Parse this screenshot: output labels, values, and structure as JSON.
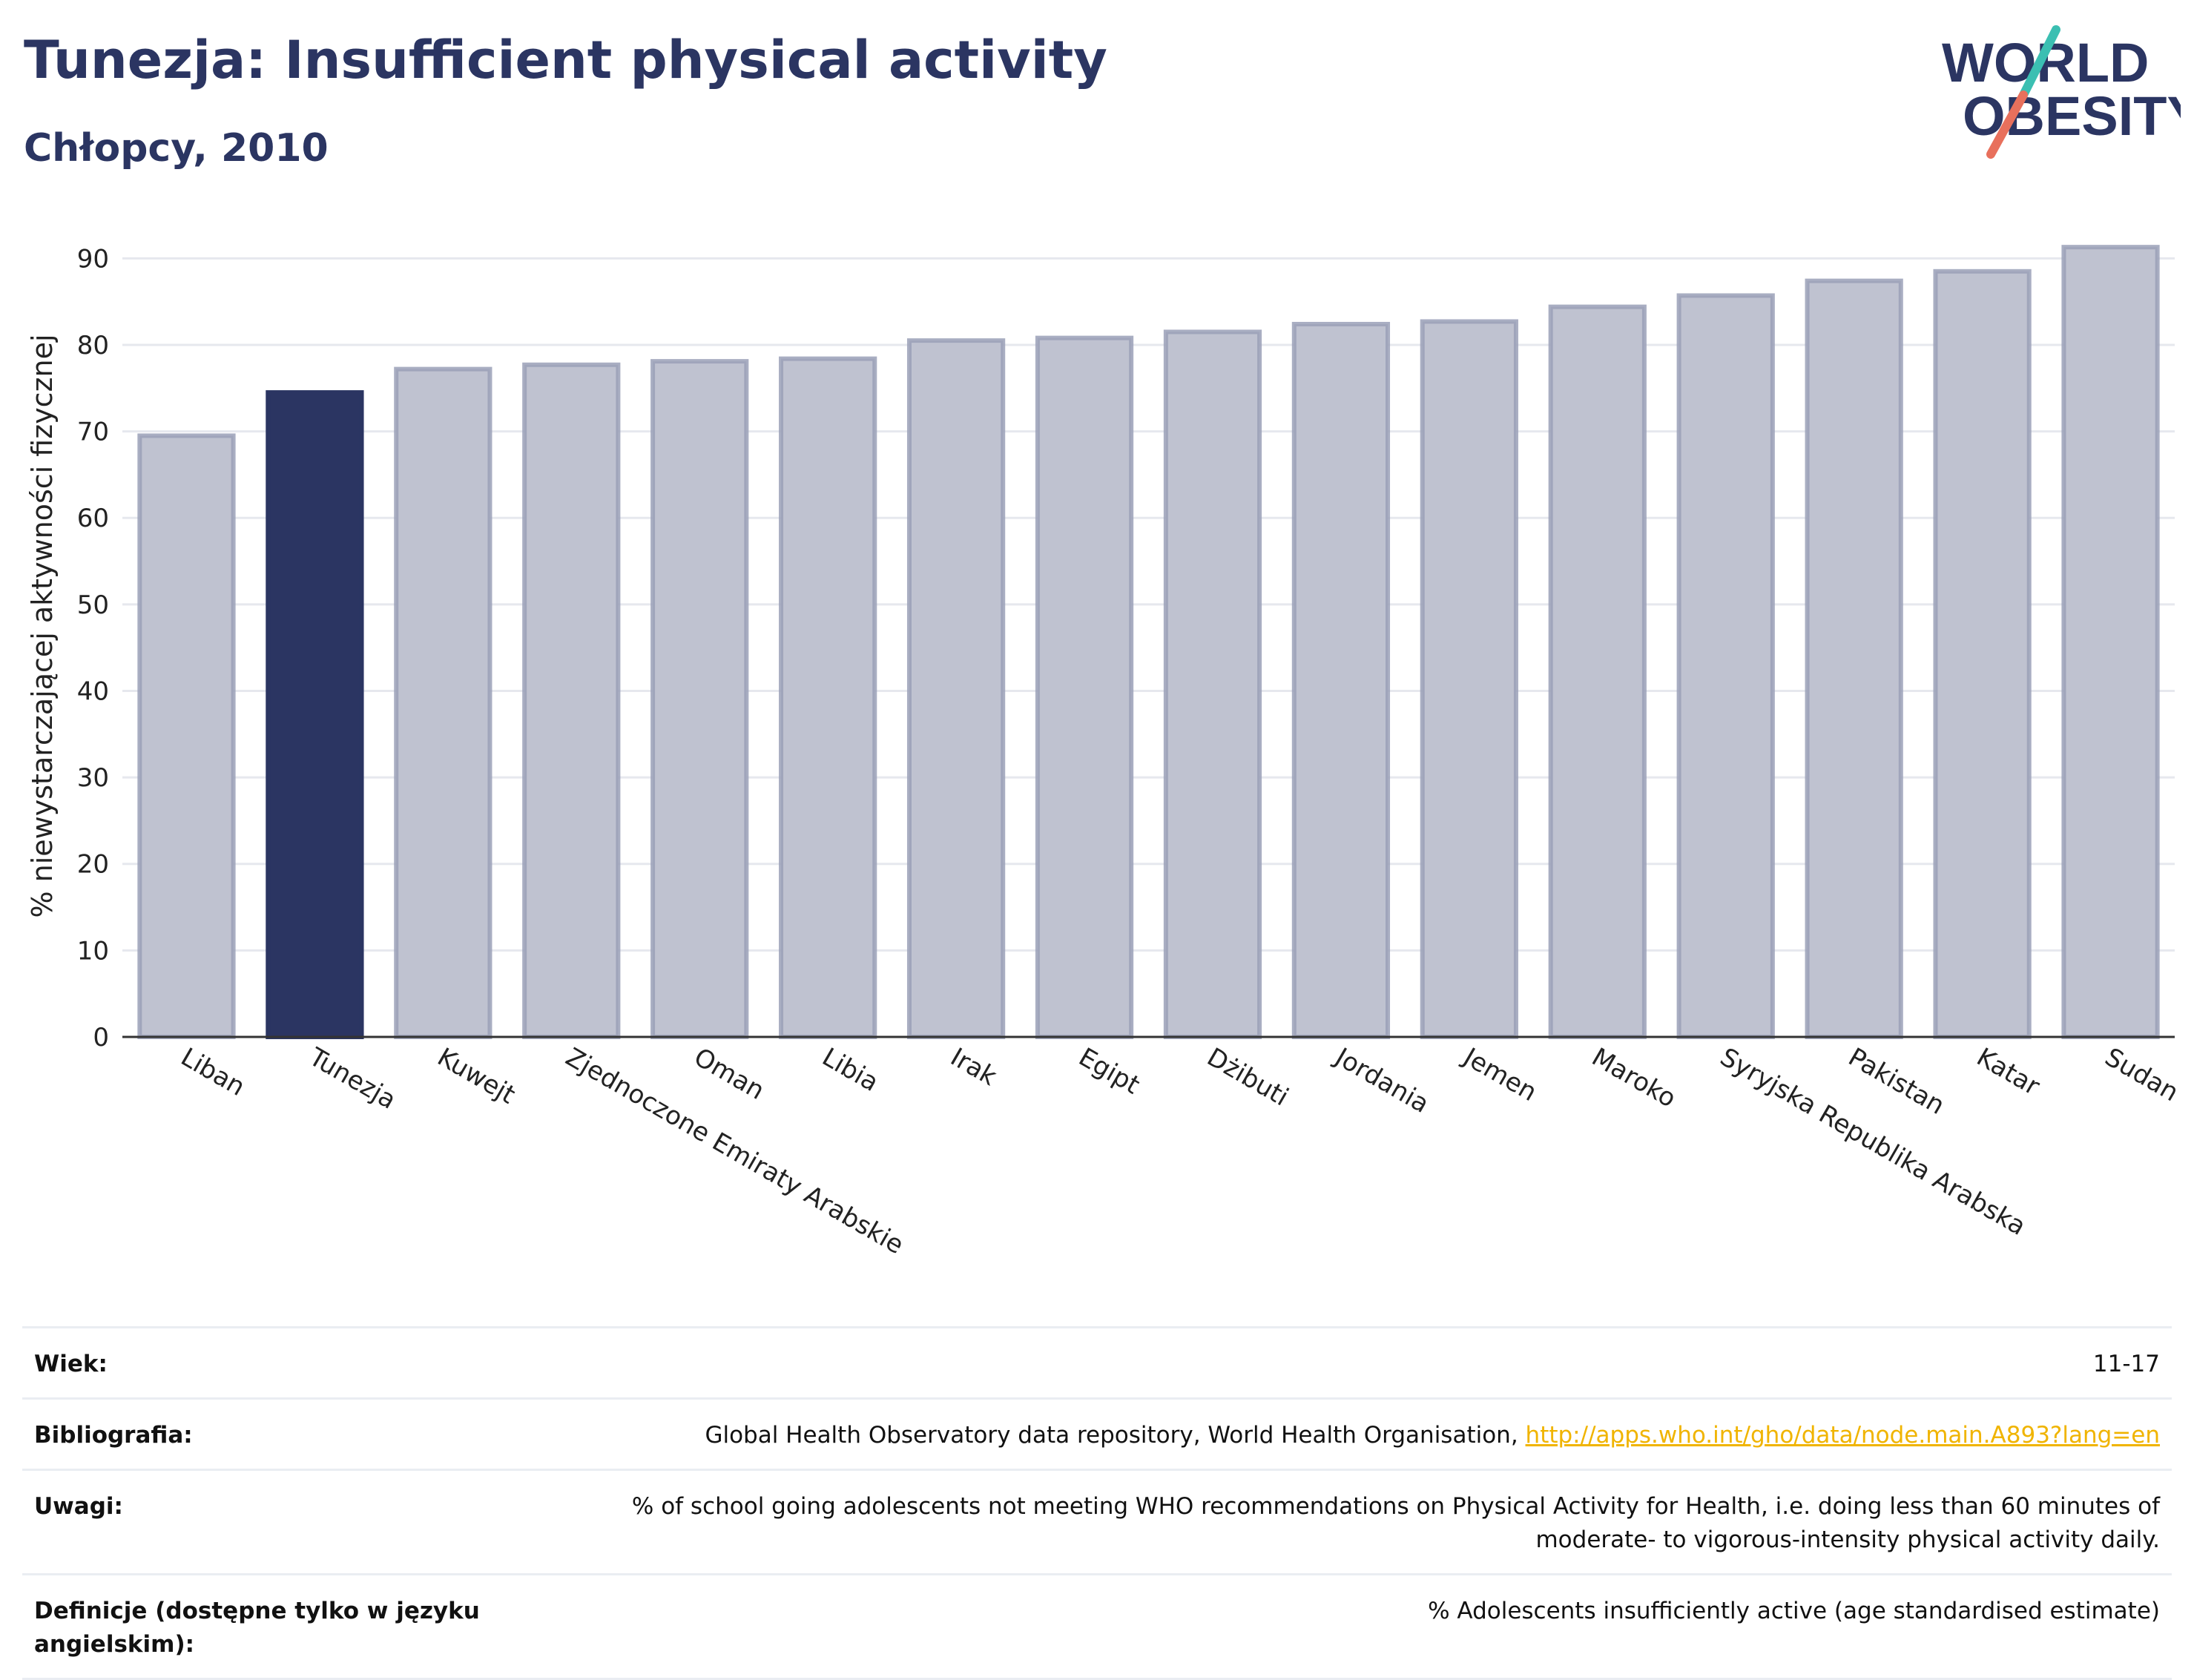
{
  "header": {
    "title": "Tunezja: Insufficient physical activity",
    "subtitle": "Chłopcy, 2010"
  },
  "logo": {
    "line1": "WORLD",
    "line2": "OBESITY",
    "accent_teal": "#3bbfb2",
    "accent_coral": "#e8705c",
    "text_color": "#2b3562"
  },
  "chart_data": {
    "type": "bar",
    "title": "",
    "xlabel": "",
    "ylabel": "% niewystarczającej aktywności fizycznej",
    "ylim": [
      0,
      95
    ],
    "yticks": [
      0,
      10,
      20,
      30,
      40,
      50,
      60,
      70,
      80,
      90
    ],
    "grid": true,
    "highlight": "Tunezja",
    "colors": {
      "bar": "#bfc2d0",
      "bar_edge": "#9aa0b7",
      "highlight": "#2b3562"
    },
    "categories": [
      "Liban",
      "Tunezja",
      "Kuwejt",
      "Zjednoczone Emiraty Arabskie",
      "Oman",
      "Libia",
      "Irak",
      "Egipt",
      "Dżibuti",
      "Jordania",
      "Jemen",
      "Maroko",
      "Syryjska Republika Arabska",
      "Pakistan",
      "Katar",
      "Sudan"
    ],
    "values": [
      69.5,
      74.5,
      77.2,
      77.7,
      78.1,
      78.4,
      80.5,
      80.8,
      81.5,
      82.4,
      82.7,
      84.4,
      85.7,
      87.4,
      88.5,
      91.3
    ]
  },
  "meta": [
    {
      "label": "Wiek:",
      "value": "11-17"
    },
    {
      "label": "Bibliografia:",
      "value": "Global Health Observatory data repository, World Health Organisation, ",
      "link": "http://apps.who.int/gho/data/node.main.A893?lang=en"
    },
    {
      "label": "Uwagi:",
      "value": "% of school going adolescents not meeting WHO recommendations on Physical Activity for Health, i.e. doing less than 60 minutes of moderate- to vigorous-intensity physical activity daily."
    },
    {
      "label": "Definicje (dostępne tylko w języku angielskim):",
      "value": "% Adolescents insufficiently active (age standardised estimate)"
    }
  ]
}
